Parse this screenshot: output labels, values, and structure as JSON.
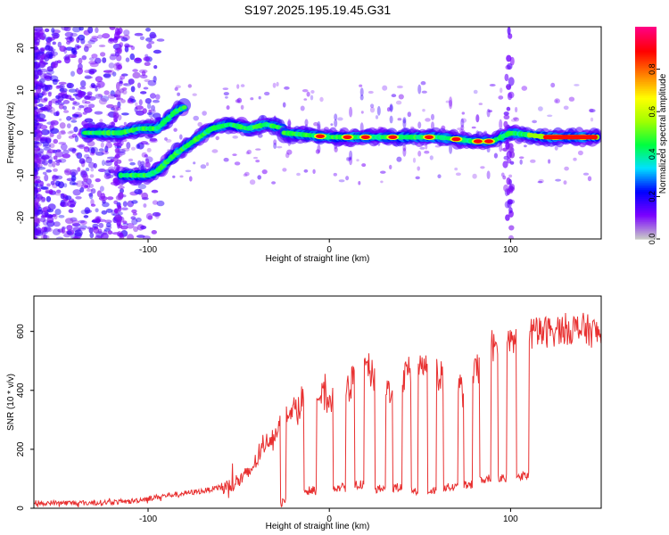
{
  "title": "S197.2025.195.19.45.G31",
  "colorbar": {
    "label": "Normalized spectral amplitude",
    "ticks": [
      "0.0",
      "0.2",
      "0.4",
      "0.6",
      "0.8"
    ],
    "tick_values": [
      0.0,
      0.2,
      0.4,
      0.6,
      0.8
    ],
    "range": [
      0,
      1
    ],
    "colormap": [
      "#c8c8c8",
      "#7a00ff",
      "#0000ff",
      "#00e0ff",
      "#00ff40",
      "#a0ff00",
      "#ffff00",
      "#ff8000",
      "#ff0000",
      "#ff0080"
    ]
  },
  "chart_data": [
    {
      "type": "heatmap",
      "title": "S197.2025.195.19.45.G31",
      "xlabel": "Height of straight line (km)",
      "ylabel": "Frequency (Hz)",
      "xlim": [
        -163,
        150
      ],
      "ylim": [
        -25,
        25
      ],
      "xticks": [
        -100,
        0,
        100
      ],
      "yticks": [
        -20,
        -10,
        0,
        10,
        20
      ],
      "colorbar_label": "Normalized spectral amplitude",
      "ridges": [
        {
          "name": "",
          "x": [
            -135,
            -115,
            -105,
            -95,
            -85,
            -80
          ],
          "y": [
            0,
            0,
            1,
            1,
            5,
            6
          ]
        },
        {
          "name": "",
          "x": [
            -115,
            -100,
            -95,
            -85,
            -75,
            -65,
            -55,
            -45,
            -35,
            -25
          ],
          "y": [
            -10,
            -10,
            -9,
            -5,
            -2,
            1,
            2,
            1,
            2,
            1
          ]
        },
        {
          "name": "",
          "x": [
            -25,
            0,
            20,
            40,
            60,
            80,
            90,
            100,
            120,
            148
          ],
          "y": [
            0,
            -1,
            -1,
            -1,
            -1,
            -2,
            -2,
            0,
            -1,
            -1
          ]
        }
      ],
      "hotspots_x": [
        -5,
        10,
        20,
        35,
        55,
        70,
        82,
        88,
        125,
        140
      ]
    },
    {
      "type": "line",
      "xlabel": "Height of straight line (km)",
      "ylabel": "SNR (10 * v/v)",
      "xlim": [
        -163,
        150
      ],
      "ylim": [
        0,
        720
      ],
      "xticks": [
        -100,
        0,
        100
      ],
      "yticks": [
        0,
        200,
        400,
        600
      ],
      "color": "#e83030",
      "envelope": {
        "x": [
          -163,
          -130,
          -110,
          -90,
          -70,
          -55,
          -45,
          -40,
          -35,
          -30,
          -25,
          -20,
          -15,
          -10,
          0,
          10,
          20,
          30,
          40,
          50,
          60,
          70,
          75,
          80,
          90,
          100,
          110,
          120,
          130,
          140,
          150
        ],
        "y": [
          20,
          20,
          25,
          45,
          60,
          80,
          120,
          170,
          230,
          260,
          330,
          340,
          380,
          400,
          380,
          420,
          500,
          400,
          450,
          510,
          460,
          440,
          380,
          470,
          520,
          570,
          600,
          610,
          620,
          620,
          600
        ]
      },
      "dips": [
        {
          "x0": -27,
          "x1": -24,
          "y": 20
        },
        {
          "x0": -14,
          "x1": -7,
          "y": 60
        },
        {
          "x0": 2,
          "x1": 9,
          "y": 70
        },
        {
          "x0": 14,
          "x1": 19,
          "y": 80
        },
        {
          "x0": 25,
          "x1": 31,
          "y": 65
        },
        {
          "x0": 35,
          "x1": 40,
          "y": 70
        },
        {
          "x0": 45,
          "x1": 49,
          "y": 60
        },
        {
          "x0": 54,
          "x1": 59,
          "y": 60
        },
        {
          "x0": 63,
          "x1": 71,
          "y": 70
        },
        {
          "x0": 74,
          "x1": 79,
          "y": 80
        },
        {
          "x0": 83,
          "x1": 89,
          "y": 100
        },
        {
          "x0": 93,
          "x1": 98,
          "y": 105
        },
        {
          "x0": 103,
          "x1": 110,
          "y": 110
        }
      ]
    }
  ]
}
